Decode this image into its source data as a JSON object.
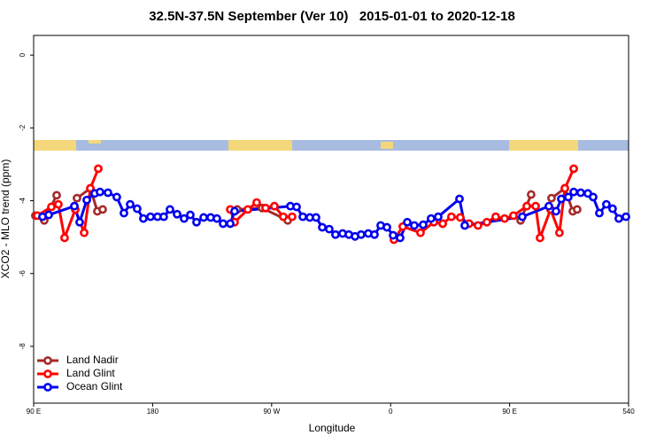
{
  "chart_data": {
    "type": "line",
    "title": "32.5N-37.5N September (Ver 10)   2015-01-01 to 2020-12-18",
    "xlabel": "Longitude",
    "ylabel": "XCO2 - MLO trend (ppm)",
    "xlim": [
      90,
      540
    ],
    "ylim": [
      -9.56,
      0.54
    ],
    "xticks": [
      {
        "value": 90,
        "label": "90 E"
      },
      180,
      {
        "value": 270,
        "label": "90 W"
      },
      {
        "value": 360,
        "label": "0"
      },
      {
        "value": 450,
        "label": "90 E"
      },
      540
    ],
    "yticks": [
      0,
      -2,
      -4,
      -6,
      -8
    ],
    "legend": "bottom-left",
    "series": [
      {
        "name": "Land Nadir",
        "color": "#a52a2a",
        "x": [
          91.3,
          98.0,
          107.4,
          null,
          122.8,
          132.9,
          138.2,
          142.2,
          null,
          244.0,
          262.8,
          282.2,
          null,
          399.4,
          null,
          458.3,
          466.3,
          null,
          481.7,
          491.8,
          497.8,
          501.1
        ],
        "values": [
          -4.41,
          -4.54,
          -3.85,
          null,
          -3.93,
          -3.66,
          -4.29,
          -4.24,
          null,
          -4.24,
          -4.2,
          -4.54,
          null,
          -4.63,
          null,
          -4.54,
          -3.83,
          null,
          -3.93,
          -3.66,
          -4.29,
          -4.24
        ]
      },
      {
        "name": "Land Glint",
        "color": "#ff0000",
        "x": [
          92.7,
          103.4,
          108.7,
          113.4,
          121.5,
          128.2,
          132.9,
          138.9,
          null,
          238.7,
          242.0,
          252.0,
          258.7,
          265.4,
          272.1,
          278.8,
          285.5,
          null,
          362.5,
          369.2,
          382.6,
          392.7,
          399.4,
          406.0,
          412.7,
          419.4,
          426.1,
          432.8,
          439.5,
          446.2,
          452.9,
          463.0,
          469.7,
          473.0,
          481.0,
          487.7,
          491.8,
          498.5
        ],
        "values": [
          -4.41,
          -4.17,
          -4.1,
          -5.02,
          -4.24,
          -4.88,
          -3.66,
          -3.12,
          null,
          -4.24,
          -4.59,
          -4.24,
          -4.05,
          -4.2,
          -4.15,
          -4.44,
          -4.44,
          null,
          -5.07,
          -4.71,
          -4.88,
          -4.59,
          -4.63,
          -4.44,
          -4.46,
          -4.63,
          -4.68,
          -4.59,
          -4.44,
          -4.49,
          -4.41,
          -4.15,
          -4.15,
          -5.02,
          -4.24,
          -4.88,
          -3.66,
          -3.12
        ]
      },
      {
        "name": "Ocean Glint",
        "color": "#0000ee",
        "x": [
          96.7,
          101.4,
          120.8,
          124.8,
          130.2,
          136.2,
          140.2,
          146.2,
          152.9,
          158.3,
          163.0,
          168.3,
          173.0,
          178.4,
          183.7,
          188.4,
          193.1,
          198.5,
          203.8,
          208.5,
          213.2,
          218.6,
          223.9,
          228.6,
          233.3,
          238.7,
          242.0,
          284.2,
          288.9,
          293.6,
          298.9,
          303.6,
          308.3,
          313.6,
          318.3,
          323.7,
          328.4,
          333.1,
          337.7,
          343.1,
          347.8,
          352.5,
          357.2,
          361.9,
          367.2,
          372.6,
          377.9,
          384.6,
          390.6,
          396.0,
          412.1,
          416.1,
          459.6,
          479.7,
          485.1,
          489.1,
          494.4,
          498.5,
          503.8,
          509.2,
          513.2,
          517.9,
          523.2,
          527.9,
          532.6,
          538.0
        ],
        "values": [
          -4.44,
          -4.39,
          -4.15,
          -4.59,
          -3.98,
          -3.8,
          -3.76,
          -3.78,
          -3.9,
          -4.34,
          -4.1,
          -4.22,
          -4.49,
          -4.44,
          -4.44,
          -4.44,
          -4.24,
          -4.37,
          -4.49,
          -4.39,
          -4.59,
          -4.46,
          -4.46,
          -4.49,
          -4.63,
          -4.63,
          -4.29,
          -4.15,
          -4.17,
          -4.44,
          -4.46,
          -4.46,
          -4.73,
          -4.78,
          -4.93,
          -4.9,
          -4.93,
          -4.98,
          -4.93,
          -4.9,
          -4.93,
          -4.68,
          -4.73,
          -4.95,
          -5.02,
          -4.59,
          -4.68,
          -4.66,
          -4.49,
          -4.44,
          -3.95,
          -4.68,
          -4.44,
          -4.15,
          -4.29,
          -3.95,
          -3.9,
          -3.76,
          -3.78,
          -3.8,
          -3.9,
          -4.34,
          -4.1,
          -4.22,
          -4.49,
          -4.44
        ]
      }
    ]
  }
}
